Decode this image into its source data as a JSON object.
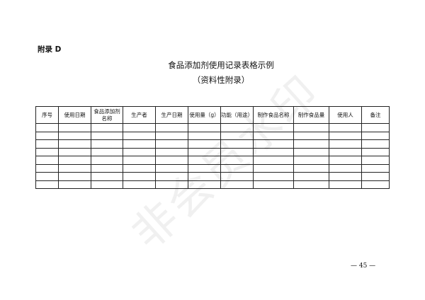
{
  "appendix_label": "附录 D",
  "title": "食品添加剂使用记录表格示例",
  "subtitle": "（资料性附录）",
  "table": {
    "headers": [
      "序号",
      "使用日期",
      "食品添加剂名称",
      "生产者",
      "生产日期",
      "使用量（g）",
      "功能（用途）",
      "制作食品名称",
      "制作食品量",
      "使用人",
      "备注"
    ],
    "empty_rows": 8
  },
  "page_number": "— 45 —",
  "watermark": "非会员水印"
}
